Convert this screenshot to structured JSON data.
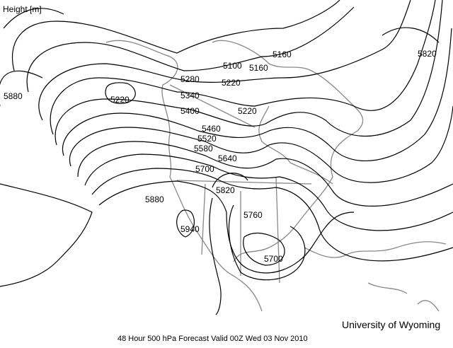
{
  "title": "Height [m]",
  "credit": "University of Wyoming",
  "caption": "48 Hour 500 hPa Forecast Valid 00Z Wed 03 Nov 2010",
  "colors": {
    "contour": "#000000",
    "coastline": "#888888",
    "background": "#ffffff"
  },
  "contour_labels": [
    {
      "text": "5880"
    },
    {
      "text": "5220"
    },
    {
      "text": "5280"
    },
    {
      "text": "5340"
    },
    {
      "text": "5400"
    },
    {
      "text": "5100"
    },
    {
      "text": "5160"
    },
    {
      "text": "5220"
    },
    {
      "text": "5220"
    },
    {
      "text": "5160"
    },
    {
      "text": "5820"
    },
    {
      "text": "5460"
    },
    {
      "text": "5520"
    },
    {
      "text": "5580"
    },
    {
      "text": "5640"
    },
    {
      "text": "5700"
    },
    {
      "text": "5820"
    },
    {
      "text": "5880"
    },
    {
      "text": "5940"
    },
    {
      "text": "5760"
    },
    {
      "text": "5700"
    }
  ]
}
